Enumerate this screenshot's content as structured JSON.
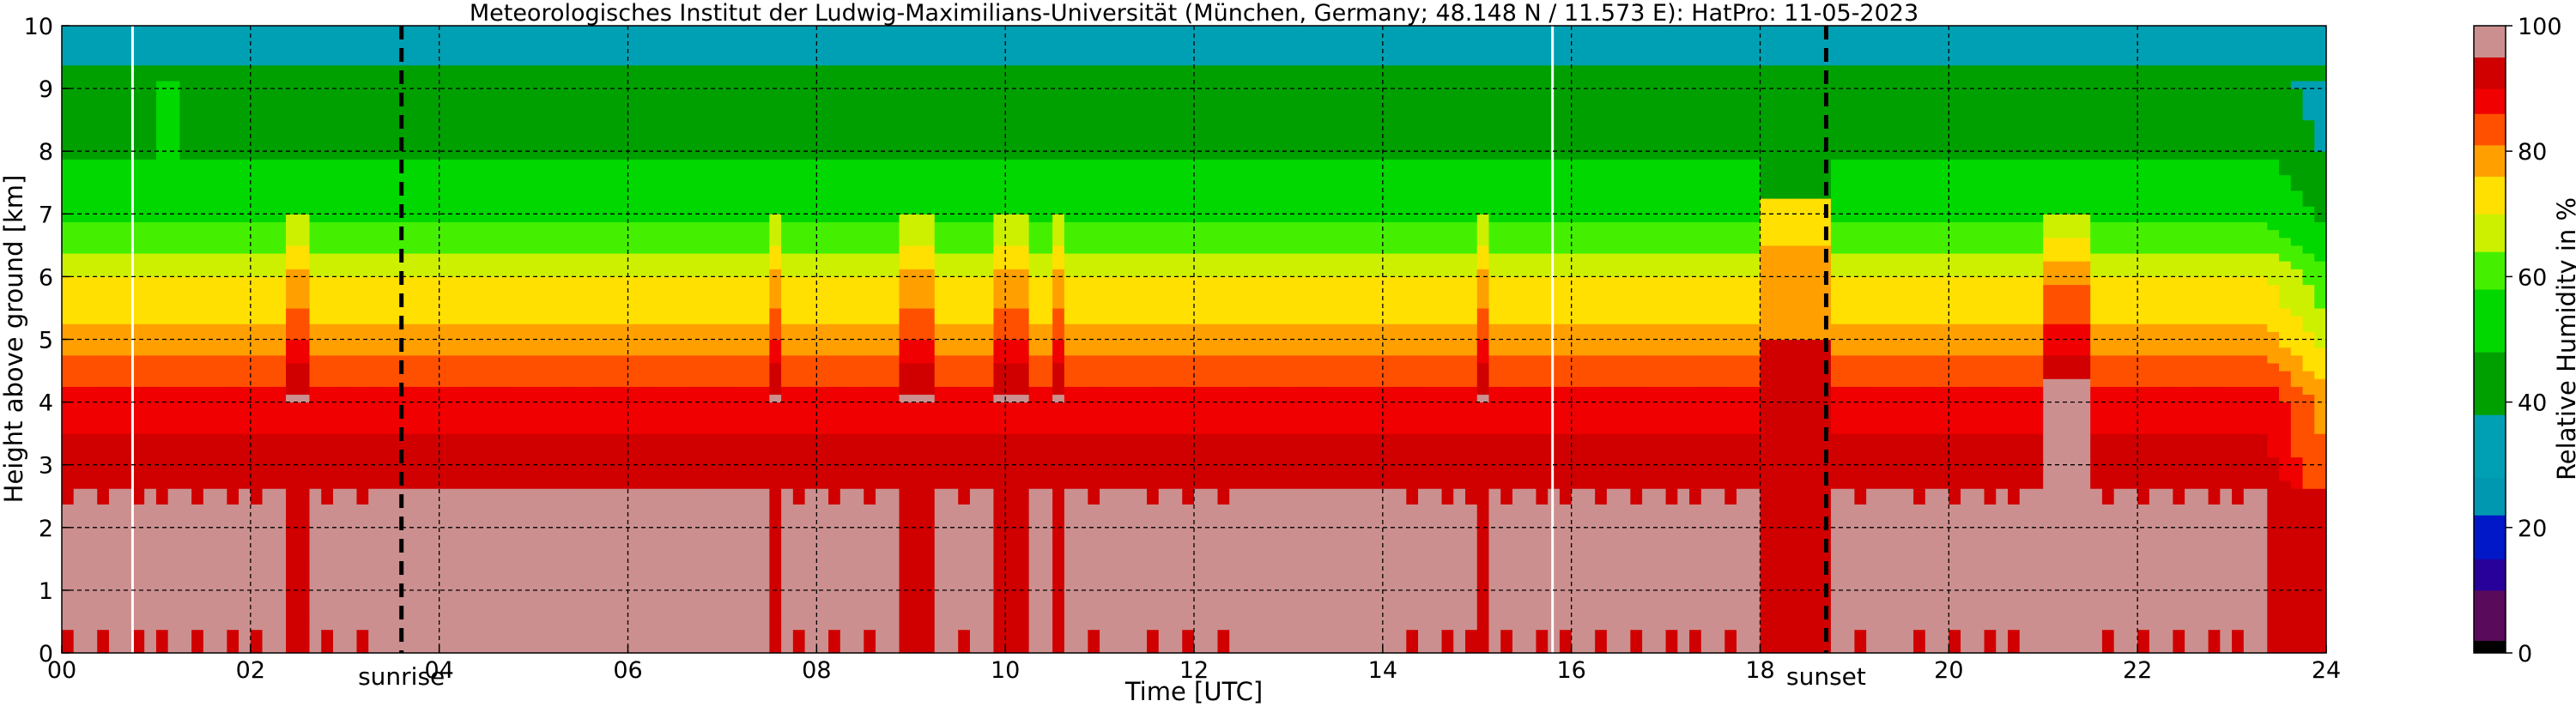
{
  "chart_data": {
    "type": "heatmap",
    "title": "Meteorologisches Institut der Ludwig-Maximilians-Universität (München, Germany; 48.148 N / 11.573 E):    HatPro: 11-05-2023",
    "xlabel": "Time [UTC]",
    "ylabel": "Height above ground [km]",
    "xlim": [
      0,
      24
    ],
    "ylim": [
      0,
      10
    ],
    "x_ticks": [
      "00",
      "02",
      "04",
      "06",
      "08",
      "10",
      "12",
      "14",
      "16",
      "18",
      "20",
      "22",
      "24"
    ],
    "x_tick_values": [
      0,
      2,
      4,
      6,
      8,
      10,
      12,
      14,
      16,
      18,
      20,
      22,
      24
    ],
    "y_ticks": [
      "0",
      "1",
      "2",
      "3",
      "4",
      "5",
      "6",
      "7",
      "8",
      "9",
      "10"
    ],
    "y_tick_values": [
      0,
      1,
      2,
      3,
      4,
      5,
      6,
      7,
      8,
      9,
      10
    ],
    "grid": true,
    "colorbar": {
      "label": "Relative Humidity in %",
      "ticks": [
        "0",
        "20",
        "40",
        "60",
        "80",
        "100"
      ],
      "tick_values": [
        0,
        20,
        40,
        60,
        80,
        100
      ],
      "colors": [
        {
          "from": 0,
          "to": 2,
          "color": "#000000"
        },
        {
          "from": 2,
          "to": 10,
          "color": "#5a0a5a"
        },
        {
          "from": 10,
          "to": 15,
          "color": "#28009a"
        },
        {
          "from": 15,
          "to": 22,
          "color": "#0018c8"
        },
        {
          "from": 22,
          "to": 28,
          "color": "#0098b0"
        },
        {
          "from": 28,
          "to": 38,
          "color": "#00a0b4"
        },
        {
          "from": 38,
          "to": 48,
          "color": "#00a000"
        },
        {
          "from": 48,
          "to": 58,
          "color": "#00d800"
        },
        {
          "from": 58,
          "to": 64,
          "color": "#44f000"
        },
        {
          "from": 64,
          "to": 70,
          "color": "#ccf000"
        },
        {
          "from": 70,
          "to": 76,
          "color": "#ffe000"
        },
        {
          "from": 76,
          "to": 81,
          "color": "#ffa000"
        },
        {
          "from": 81,
          "to": 86,
          "color": "#ff5000"
        },
        {
          "from": 86,
          "to": 90,
          "color": "#f00000"
        },
        {
          "from": 90,
          "to": 95,
          "color": "#d00000"
        },
        {
          "from": 95,
          "to": 100,
          "color": "#cc8f8f"
        }
      ]
    },
    "annotations": [
      {
        "text": "sunrise",
        "x": 3.6,
        "line": "dashed-black"
      },
      {
        "text": "sunset",
        "x": 18.7,
        "line": "dashed-black"
      }
    ],
    "data_gaps": [
      0.75,
      15.8
    ],
    "profile_typical": [
      {
        "height_km": 0.1,
        "rh": 90
      },
      {
        "height_km": 0.5,
        "rh": 98
      },
      {
        "height_km": 2.0,
        "rh": 97
      },
      {
        "height_km": 3.0,
        "rh": 91
      },
      {
        "height_km": 4.0,
        "rh": 89
      },
      {
        "height_km": 4.5,
        "rh": 83
      },
      {
        "height_km": 5.0,
        "rh": 78
      },
      {
        "height_km": 5.5,
        "rh": 73
      },
      {
        "height_km": 6.0,
        "rh": 70
      },
      {
        "height_km": 6.5,
        "rh": 62
      },
      {
        "height_km": 7.0,
        "rh": 56
      },
      {
        "height_km": 8.0,
        "rh": 47
      },
      {
        "height_km": 9.0,
        "rh": 43
      },
      {
        "height_km": 9.7,
        "rh": 34
      }
    ],
    "events": [
      {
        "start": 1.0,
        "end": 1.2,
        "kind": "moist"
      },
      {
        "start": 2.4,
        "end": 2.6,
        "kind": "dry"
      },
      {
        "start": 7.55,
        "end": 7.65,
        "kind": "dry"
      },
      {
        "start": 8.9,
        "end": 9.3,
        "kind": "dry"
      },
      {
        "start": 9.9,
        "end": 10.25,
        "kind": "dry"
      },
      {
        "start": 10.45,
        "end": 10.6,
        "kind": "dry"
      },
      {
        "start": 15.05,
        "end": 15.15,
        "kind": "dry"
      },
      {
        "start": 18.0,
        "end": 18.7,
        "kind": "dry"
      },
      {
        "start": 20.95,
        "end": 21.45,
        "kind": "dry"
      },
      {
        "start": 23.4,
        "end": 24.0,
        "kind": "edge"
      }
    ]
  }
}
